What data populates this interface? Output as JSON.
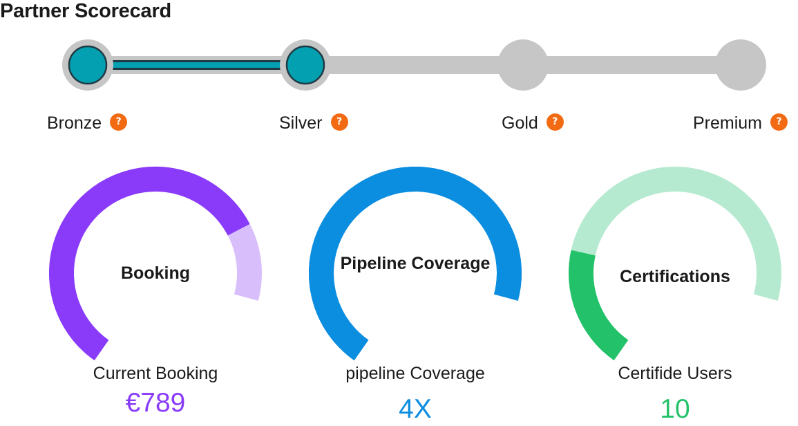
{
  "title": "Partner Scorecard",
  "tiers": [
    {
      "label": "Bronze",
      "help_icon": "?",
      "reached": true
    },
    {
      "label": "Silver",
      "help_icon": "?",
      "reached": true
    },
    {
      "label": "Gold",
      "help_icon": "?",
      "reached": false
    },
    {
      "label": "Premium",
      "help_icon": "?",
      "reached": false
    }
  ],
  "colors": {
    "track": "#c6c6c6",
    "progress": "#03a0b1",
    "help_badge": "#f26a12"
  },
  "gauges": [
    {
      "title": "Booking",
      "caption": "Current Booking",
      "value": "€789",
      "fill_fraction": 0.83,
      "fill_color": "#8a3bfa",
      "track_color": "#d8bffc",
      "value_color": "#8a3bfa"
    },
    {
      "title": "Pipeline Coverage",
      "caption": "pipeline Coverage",
      "value": "4X",
      "fill_fraction": 1.0,
      "fill_color": "#0b8de0",
      "track_color": "#0b8de0",
      "value_color": "#0b8de0"
    },
    {
      "title": "Certifications",
      "caption": "Certifide Users",
      "value": "10",
      "fill_fraction": 0.27,
      "fill_color": "#23c26a",
      "track_color": "#b6ead0",
      "value_color": "#23c26a"
    }
  ]
}
